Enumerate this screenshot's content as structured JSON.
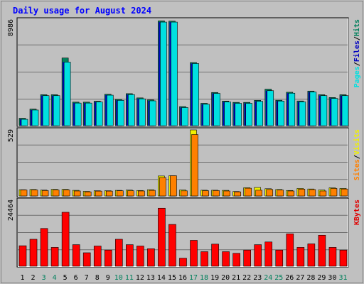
{
  "chart_data": {
    "type": "bar",
    "title": "Daily usage for August 2024",
    "categories": [
      "1",
      "2",
      "3",
      "4",
      "5",
      "6",
      "7",
      "8",
      "9",
      "10",
      "11",
      "12",
      "13",
      "14",
      "15",
      "16",
      "17",
      "18",
      "19",
      "20",
      "21",
      "22",
      "23",
      "24",
      "25",
      "26",
      "27",
      "28",
      "29",
      "30",
      "31"
    ],
    "weekend_days": [
      "3",
      "4",
      "10",
      "11",
      "17",
      "18",
      "24",
      "25",
      "31"
    ],
    "panels": [
      {
        "id": "pages-files-hits",
        "ymax_label": "8986",
        "ylim": [
          0,
          8986
        ],
        "legend_labels": [
          {
            "text": "Pages",
            "color": "#00e0e0"
          },
          {
            "text": "Files",
            "color": "#0000c0"
          },
          {
            "text": "Hits",
            "color": "#00805c"
          }
        ],
        "legend_separator": "/",
        "series": [
          {
            "name": "Hits",
            "color": "#00805c",
            "values": [
              630,
              1410,
              2630,
              2630,
              5750,
              2000,
              2000,
              2080,
              2670,
              2230,
              2720,
              2360,
              2190,
              8900,
              8880,
              1620,
              5360,
              1900,
              2820,
              2090,
              1980,
              1980,
              2150,
              3100,
              2160,
              2840,
              2100,
              2940,
              2630,
              2390,
              2630
            ]
          },
          {
            "name": "Files",
            "color": "#0000c0",
            "values": [
              540,
              1330,
              2550,
              2550,
              5400,
              1920,
              1920,
              2010,
              2590,
              2150,
              2640,
              2280,
              2110,
              8800,
              8800,
              1540,
              5280,
              1820,
              2740,
              2010,
              1900,
              1900,
              2070,
              2970,
              2090,
              2760,
              2020,
              2860,
              2550,
              2310,
              2550
            ]
          },
          {
            "name": "Pages",
            "color": "#00e0e0",
            "values": [
              540,
              1330,
              2550,
              2550,
              5400,
              1920,
              1920,
              2010,
              2590,
              2150,
              2640,
              2280,
              2110,
              8800,
              8800,
              1540,
              5280,
              1820,
              2740,
              2010,
              1900,
              1900,
              2070,
              2970,
              2090,
              2760,
              2020,
              2860,
              2550,
              2310,
              2550
            ]
          }
        ]
      },
      {
        "id": "sites-visits",
        "ymax_label": "529",
        "ylim": [
          0,
          529
        ],
        "legend_labels": [
          {
            "text": "Sites",
            "color": "#ff8000"
          },
          {
            "text": "Visits",
            "color": "#f0f000"
          }
        ],
        "legend_separator": "/",
        "series": [
          {
            "name": "Visits",
            "color": "#f0f000",
            "values": [
              50,
              52,
              47,
              53,
              53,
              45,
              37,
              42,
              42,
              45,
              47,
              44,
              50,
              160,
              162,
              48,
              529,
              46,
              46,
              45,
              36,
              66,
              68,
              58,
              52,
              44,
              60,
              56,
              48,
              65,
              60
            ]
          },
          {
            "name": "Sites",
            "color": "#ff8000",
            "values": [
              48,
              48,
              43,
              48,
              48,
              40,
              33,
              39,
              39,
              42,
              42,
              40,
              45,
              148,
              162,
              41,
              492,
              42,
              43,
              40,
              33,
              62,
              46,
              52,
              47,
              40,
              55,
              51,
              40,
              60,
              56
            ]
          }
        ]
      },
      {
        "id": "kbytes",
        "ymax_label": "24464",
        "ylim": [
          0,
          24464
        ],
        "legend_labels": [
          {
            "text": "KBytes",
            "color": "#e00000"
          }
        ],
        "legend_separator": "",
        "series": [
          {
            "name": "KBytes",
            "color": "#ff0000",
            "values": [
              7600,
              10000,
              14000,
              7000,
              20000,
              8000,
              5000,
              7500,
              6000,
              10000,
              8000,
              7500,
              6500,
              21500,
              15500,
              3000,
              9600,
              5400,
              8200,
              5400,
              4800,
              6000,
              8000,
              9000,
              6000,
              12000,
              7000,
              8300,
              11500,
              7000,
              6000
            ]
          }
        ]
      }
    ]
  },
  "colors": {
    "background": "#c0c0c0",
    "plot_background": "#c0c0c0",
    "gridline": "#707070",
    "title": "#0000ff",
    "axis_label": "#000000",
    "weekend_label": "#00805c"
  }
}
